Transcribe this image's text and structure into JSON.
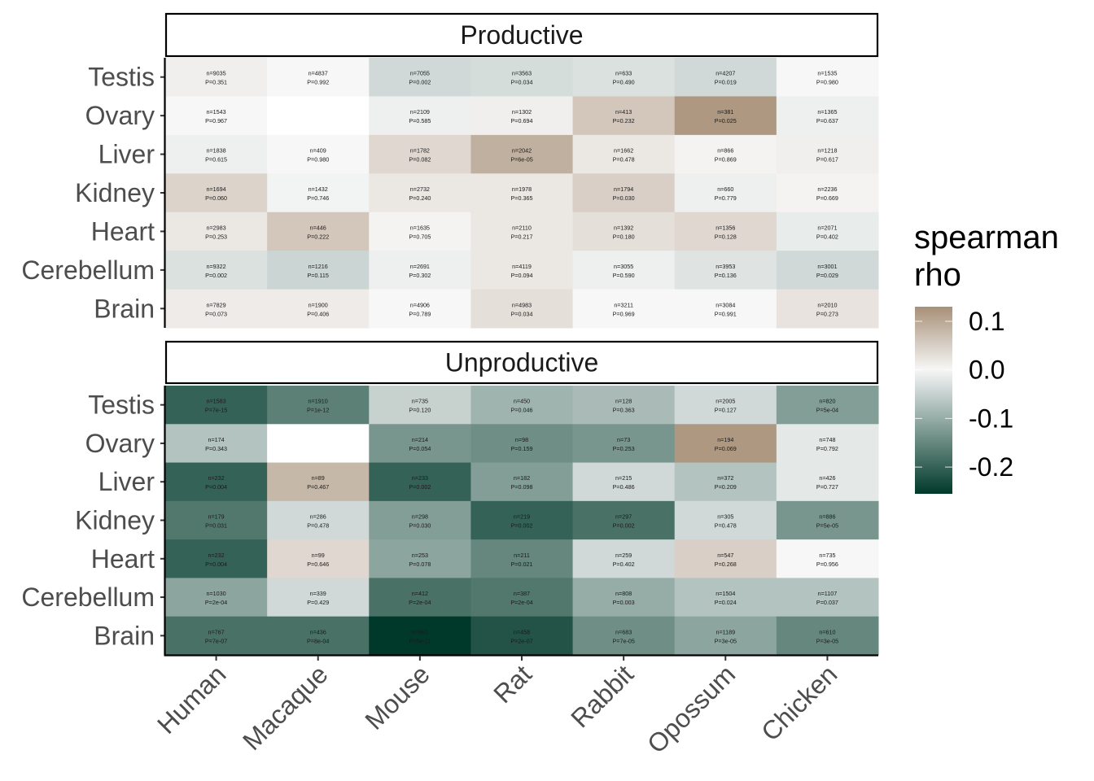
{
  "chart_data": {
    "type": "heatmap",
    "x_categories": [
      "Human",
      "Macaque",
      "Mouse",
      "Rat",
      "Rabbit",
      "Opossum",
      "Chicken"
    ],
    "y_categories": [
      "Brain",
      "Cerebellum",
      "Heart",
      "Kidney",
      "Liver",
      "Ovary",
      "Testis"
    ],
    "legend": {
      "title_lines": [
        "spearman",
        "rho"
      ],
      "ticks": [
        0.1,
        0.0,
        -0.1,
        -0.2
      ],
      "tick_labels": [
        "0.1",
        "0.0",
        "-0.1",
        "-0.2"
      ],
      "range": [
        -0.255,
        0.13
      ],
      "colors": {
        "low": "#00392a",
        "mid": "#f7f7f7",
        "high": "#a89078"
      }
    },
    "panels": [
      {
        "title": "Productive",
        "rows": [
          {
            "tissue": "Testis",
            "cells": [
              {
                "n": "n=9035",
                "p": "P=0.351",
                "rho": 0.01
              },
              {
                "n": "n=4837",
                "p": "P=0.992",
                "rho": 0.0
              },
              {
                "n": "n=7055",
                "p": "P=0.002",
                "rho": -0.04
              },
              {
                "n": "n=3563",
                "p": "P=0.034",
                "rho": -0.035
              },
              {
                "n": "n=633",
                "p": "P=0.490",
                "rho": -0.03
              },
              {
                "n": "n=4207",
                "p": "P=0.019",
                "rho": -0.04
              },
              {
                "n": "n=1535",
                "p": "P=0.980",
                "rho": 0.0
              }
            ]
          },
          {
            "tissue": "Ovary",
            "cells": [
              {
                "n": "n=1543",
                "p": "P=0.967",
                "rho": 0.0
              },
              null,
              {
                "n": "n=2109",
                "p": "P=0.585",
                "rho": -0.01
              },
              {
                "n": "n=1302",
                "p": "P=0.694",
                "rho": 0.01
              },
              {
                "n": "n=413",
                "p": "P=0.232",
                "rho": 0.06
              },
              {
                "n": "n=381",
                "p": "P=0.025",
                "rho": 0.12
              },
              {
                "n": "n=1365",
                "p": "P=0.637",
                "rho": -0.01
              }
            ]
          },
          {
            "tissue": "Liver",
            "cells": [
              {
                "n": "n=1838",
                "p": "P=0.615",
                "rho": -0.01
              },
              {
                "n": "n=409",
                "p": "P=0.980",
                "rho": 0.0
              },
              {
                "n": "n=1782",
                "p": "P=0.082",
                "rho": 0.04
              },
              {
                "n": "n=2042",
                "p": "P=6e-05",
                "rho": 0.09
              },
              {
                "n": "n=1662",
                "p": "P=0.478",
                "rho": 0.02
              },
              {
                "n": "n=866",
                "p": "P=0.869",
                "rho": 0.005
              },
              {
                "n": "n=1218",
                "p": "P=0.617",
                "rho": 0.01
              }
            ]
          },
          {
            "tissue": "Kidney",
            "cells": [
              {
                "n": "n=1694",
                "p": "P=0.060",
                "rho": 0.045
              },
              {
                "n": "n=1432",
                "p": "P=0.746",
                "rho": -0.005
              },
              {
                "n": "n=2732",
                "p": "P=0.240",
                "rho": 0.02
              },
              {
                "n": "n=1978",
                "p": "P=0.365",
                "rho": 0.02
              },
              {
                "n": "n=1794",
                "p": "P=0.030",
                "rho": 0.05
              },
              {
                "n": "n=660",
                "p": "P=0.779",
                "rho": -0.01
              },
              {
                "n": "n=2236",
                "p": "P=0.669",
                "rho": 0.005
              }
            ]
          },
          {
            "tissue": "Heart",
            "cells": [
              {
                "n": "n=2983",
                "p": "P=0.253",
                "rho": 0.02
              },
              {
                "n": "n=446",
                "p": "P=0.222",
                "rho": 0.06
              },
              {
                "n": "n=1635",
                "p": "P=0.705",
                "rho": 0.005
              },
              {
                "n": "n=2110",
                "p": "P=0.217",
                "rho": 0.02
              },
              {
                "n": "n=1392",
                "p": "P=0.180",
                "rho": 0.03
              },
              {
                "n": "n=1356",
                "p": "P=0.128",
                "rho": 0.04
              },
              {
                "n": "n=2071",
                "p": "P=0.402",
                "rho": -0.015
              }
            ]
          },
          {
            "tissue": "Cerebellum",
            "cells": [
              {
                "n": "n=9322",
                "p": "P=0.002",
                "rho": -0.03
              },
              {
                "n": "n=1216",
                "p": "P=0.115",
                "rho": -0.045
              },
              {
                "n": "n=2691",
                "p": "P=0.302",
                "rho": -0.01
              },
              {
                "n": "n=4119",
                "p": "P=0.094",
                "rho": 0.02
              },
              {
                "n": "n=3055",
                "p": "P=0.590",
                "rho": -0.01
              },
              {
                "n": "n=3953",
                "p": "P=0.136",
                "rho": -0.025
              },
              {
                "n": "n=3001",
                "p": "P=0.029",
                "rho": -0.04
              }
            ]
          },
          {
            "tissue": "Brain",
            "cells": [
              {
                "n": "n=7829",
                "p": "P=0.073",
                "rho": 0.015
              },
              {
                "n": "n=1900",
                "p": "P=0.406",
                "rho": 0.015
              },
              {
                "n": "n=4906",
                "p": "P=0.789",
                "rho": 0.0
              },
              {
                "n": "n=4983",
                "p": "P=0.034",
                "rho": 0.03
              },
              {
                "n": "n=3211",
                "p": "P=0.969",
                "rho": 0.0
              },
              {
                "n": "n=3084",
                "p": "P=0.991",
                "rho": 0.0
              },
              {
                "n": "n=2010",
                "p": "P=0.273",
                "rho": 0.025
              }
            ]
          }
        ]
      },
      {
        "title": "Unproductive",
        "rows": [
          {
            "tissue": "Testis",
            "cells": [
              {
                "n": "n=1583",
                "p": "P=7e-15",
                "rho": -0.2
              },
              {
                "n": "n=1910",
                "p": "P=1e-12",
                "rho": -0.16
              },
              {
                "n": "n=735",
                "p": "P=0.120",
                "rho": -0.05
              },
              {
                "n": "n=450",
                "p": "P=0.046",
                "rho": -0.09
              },
              {
                "n": "n=128",
                "p": "P=0.363",
                "rho": -0.08
              },
              {
                "n": "n=2005",
                "p": "P=0.127",
                "rho": -0.04
              },
              {
                "n": "n=820",
                "p": "P=5e-04",
                "rho": -0.12
              }
            ]
          },
          {
            "tissue": "Ovary",
            "cells": [
              {
                "n": "n=174",
                "p": "P=0.343",
                "rho": -0.07
              },
              null,
              {
                "n": "n=214",
                "p": "P=0.054",
                "rho": -0.13
              },
              {
                "n": "n=98",
                "p": "P=0.159",
                "rho": -0.14
              },
              {
                "n": "n=73",
                "p": "P=0.253",
                "rho": -0.13
              },
              {
                "n": "n=194",
                "p": "P=0.069",
                "rho": 0.12
              },
              {
                "n": "n=748",
                "p": "P=0.792",
                "rho": -0.02
              }
            ]
          },
          {
            "tissue": "Liver",
            "cells": [
              {
                "n": "n=232",
                "p": "P=0.004",
                "rho": -0.2
              },
              {
                "n": "n=89",
                "p": "P=0.467",
                "rho": 0.08
              },
              {
                "n": "n=233",
                "p": "P=0.002",
                "rho": -0.2
              },
              {
                "n": "n=182",
                "p": "P=0.098",
                "rho": -0.12
              },
              {
                "n": "n=215",
                "p": "P=0.486",
                "rho": -0.04
              },
              {
                "n": "n=372",
                "p": "P=0.209",
                "rho": -0.07
              },
              {
                "n": "n=426",
                "p": "P=0.727",
                "rho": -0.02
              }
            ]
          },
          {
            "tissue": "Kidney",
            "cells": [
              {
                "n": "n=179",
                "p": "P=0.031",
                "rho": -0.17
              },
              {
                "n": "n=286",
                "p": "P=0.478",
                "rho": -0.04
              },
              {
                "n": "n=298",
                "p": "P=0.030",
                "rho": -0.12
              },
              {
                "n": "n=219",
                "p": "P=0.002",
                "rho": -0.2
              },
              {
                "n": "n=297",
                "p": "P=0.002",
                "rho": -0.18
              },
              {
                "n": "n=305",
                "p": "P=0.478",
                "rho": -0.04
              },
              {
                "n": "n=886",
                "p": "P=5e-05",
                "rho": -0.13
              }
            ]
          },
          {
            "tissue": "Heart",
            "cells": [
              {
                "n": "n=232",
                "p": "P=0.004",
                "rho": -0.2
              },
              {
                "n": "n=99",
                "p": "P=0.646",
                "rho": 0.04
              },
              {
                "n": "n=253",
                "p": "P=0.078",
                "rho": -0.11
              },
              {
                "n": "n=211",
                "p": "P=0.021",
                "rho": -0.15
              },
              {
                "n": "n=259",
                "p": "P=0.402",
                "rho": -0.04
              },
              {
                "n": "n=547",
                "p": "P=0.268",
                "rho": 0.05
              },
              {
                "n": "n=735",
                "p": "P=0.956",
                "rho": 0.0
              }
            ]
          },
          {
            "tissue": "Cerebellum",
            "cells": [
              {
                "n": "n=1030",
                "p": "P=2e-04",
                "rho": -0.11
              },
              {
                "n": "n=339",
                "p": "P=0.429",
                "rho": -0.04
              },
              {
                "n": "n=412",
                "p": "P=2e-04",
                "rho": -0.18
              },
              {
                "n": "n=387",
                "p": "P=2e-04",
                "rho": -0.17
              },
              {
                "n": "n=808",
                "p": "P=0.003",
                "rho": -0.1
              },
              {
                "n": "n=1504",
                "p": "P=0.024",
                "rho": -0.07
              },
              {
                "n": "n=1107",
                "p": "P=0.037",
                "rho": -0.07
              }
            ]
          },
          {
            "tissue": "Brain",
            "cells": [
              {
                "n": "n=767",
                "p": "P=7e-07",
                "rho": -0.18
              },
              {
                "n": "n=436",
                "p": "P=8e-04",
                "rho": -0.18
              },
              {
                "n": "n=561",
                "p": "P=5e-11",
                "rho": -0.255
              },
              {
                "n": "n=458",
                "p": "P=2e-07",
                "rho": -0.22
              },
              {
                "n": "n=683",
                "p": "P=7e-05",
                "rho": -0.14
              },
              {
                "n": "n=1189",
                "p": "P=3e-05",
                "rho": -0.11
              },
              {
                "n": "n=610",
                "p": "P=3e-05",
                "rho": -0.15
              }
            ]
          }
        ]
      }
    ]
  }
}
